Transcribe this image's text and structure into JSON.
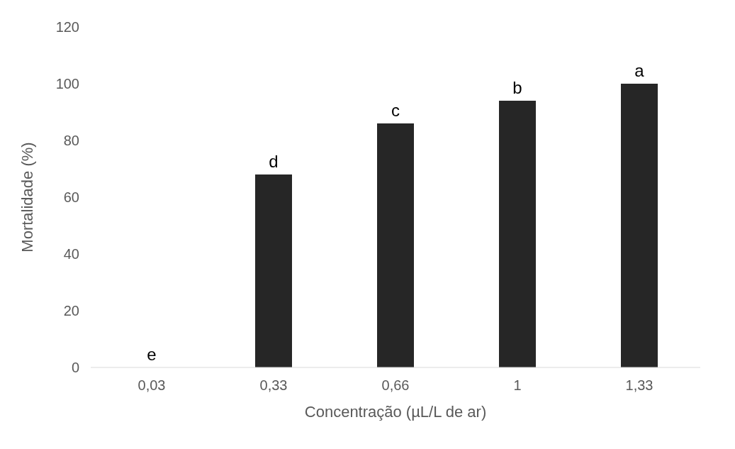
{
  "chart_data": {
    "type": "bar",
    "xlabel": "Concentração (µL/L de ar)",
    "ylabel": "Mortalidade (%)",
    "categories": [
      "0,03",
      "0,33",
      "0,66",
      "1",
      "1,33"
    ],
    "values": [
      0,
      68,
      86,
      94,
      100
    ],
    "color": "#262626",
    "ylim": [
      0,
      120
    ],
    "yticks": [
      0,
      20,
      40,
      60,
      80,
      100,
      120
    ],
    "grid": false,
    "annotations": [
      {
        "text": "e",
        "x": "0,03",
        "y": 0
      },
      {
        "text": "d",
        "x": "0,33",
        "y": 68
      },
      {
        "text": "c",
        "x": "0,66",
        "y": 86
      },
      {
        "text": "b",
        "x": "1",
        "y": 94
      },
      {
        "text": "a",
        "x": "1,33",
        "y": 100
      }
    ]
  }
}
